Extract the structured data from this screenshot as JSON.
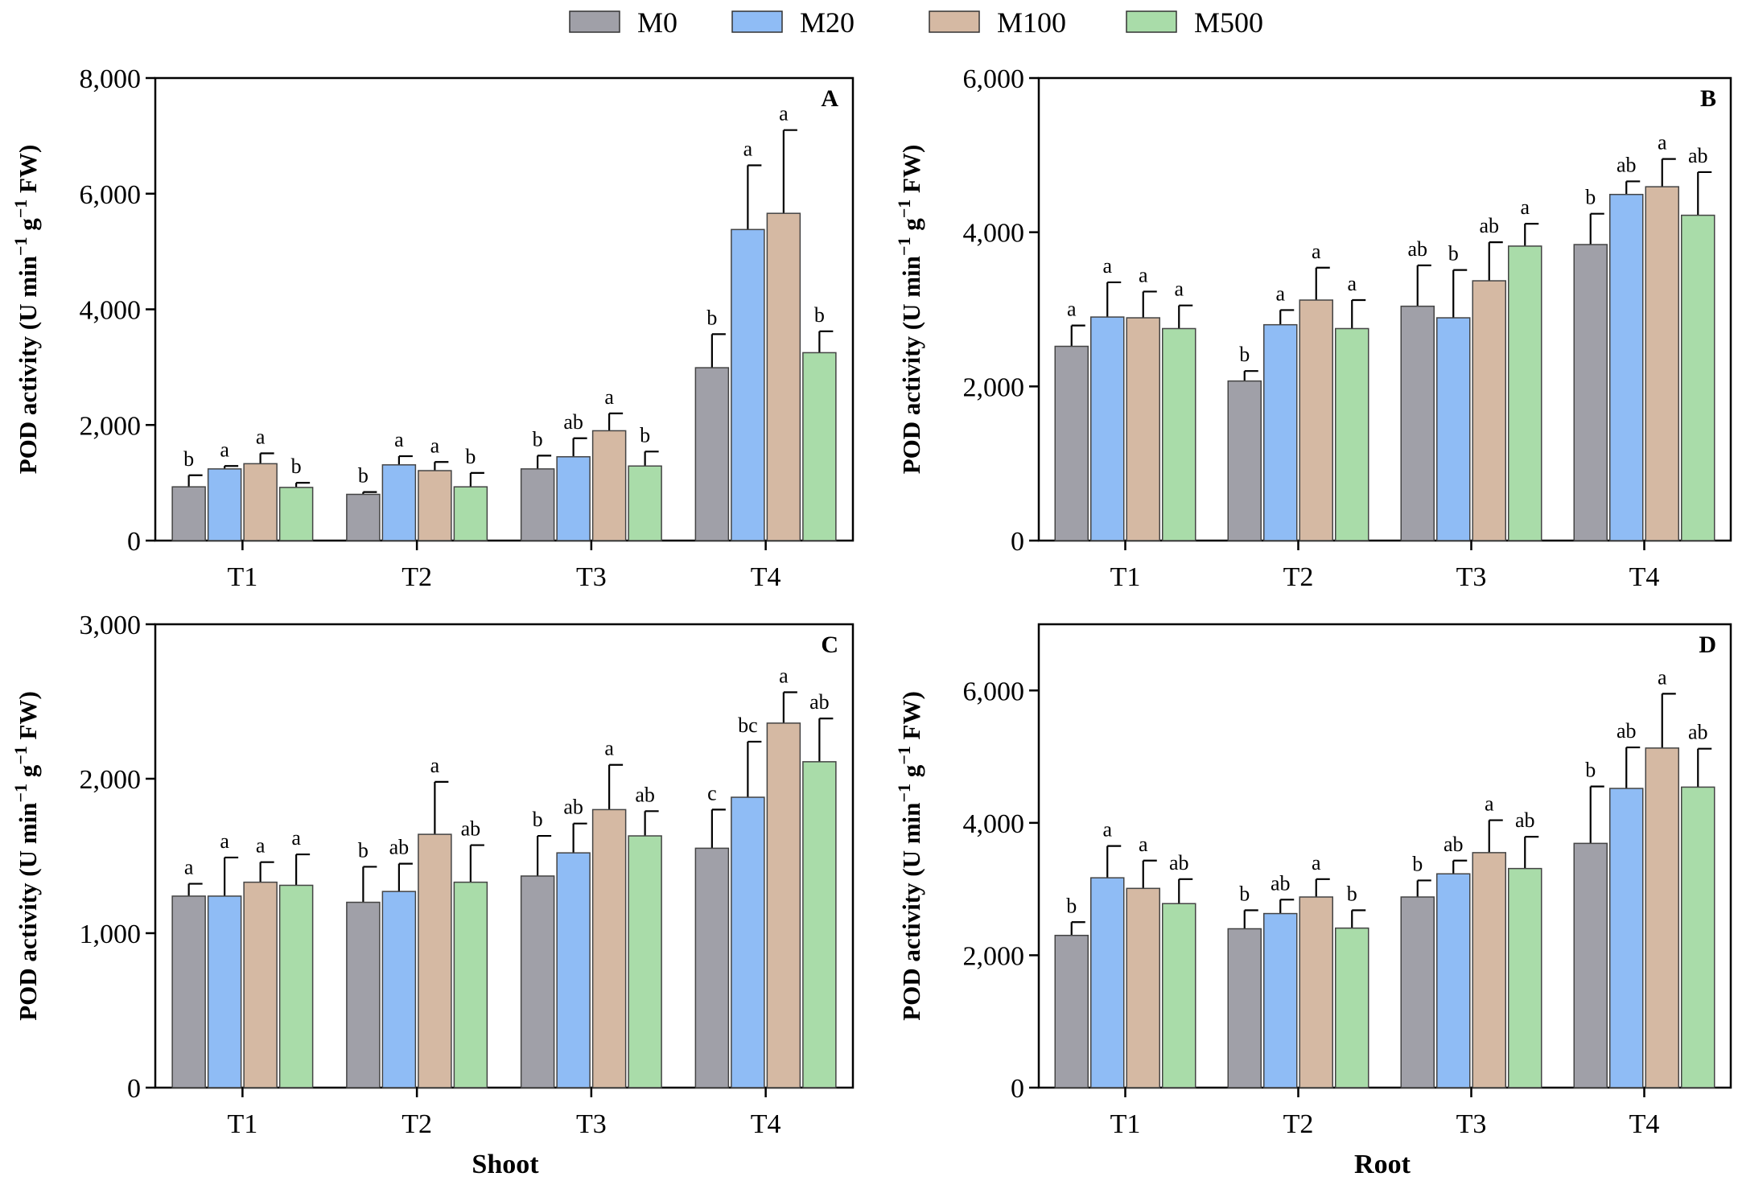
{
  "figure": {
    "legend": [
      {
        "name": "M0",
        "color": "#a0a0a8"
      },
      {
        "name": "M20",
        "color": "#8fbcf5"
      },
      {
        "name": "M100",
        "color": "#d5b9a3"
      },
      {
        "name": "M500",
        "color": "#a9dca9"
      }
    ],
    "x_section_labels": [
      "Shoot",
      "Root"
    ],
    "ylabel_main": "POD activity (U min",
    "ylabel_sup1": "−1",
    "ylabel_mid": " g",
    "ylabel_sup2": "−1",
    "ylabel_end": " FW)"
  },
  "chart_data": [
    {
      "type": "bar",
      "panel": "A",
      "title": "A",
      "section": "Shoot",
      "categories": [
        "T1",
        "T2",
        "T3",
        "T4"
      ],
      "ylim": [
        0,
        8000
      ],
      "yticks": [
        0,
        2000,
        4000,
        6000,
        8000
      ],
      "ytick_labels": [
        "0",
        "2,000",
        "4,000",
        "6,000",
        "8,000"
      ],
      "series": [
        {
          "name": "M0",
          "values": [
            930,
            800,
            1240,
            2990
          ],
          "errors": [
            200,
            40,
            230,
            580
          ],
          "letters": [
            "b",
            "b",
            "b",
            "b"
          ]
        },
        {
          "name": "M20",
          "values": [
            1240,
            1310,
            1450,
            5380
          ],
          "errors": [
            50,
            150,
            320,
            1110
          ],
          "letters": [
            "a",
            "a",
            "ab",
            "a"
          ]
        },
        {
          "name": "M100",
          "values": [
            1330,
            1210,
            1900,
            5660
          ],
          "errors": [
            180,
            150,
            300,
            1440
          ],
          "letters": [
            "a",
            "a",
            "a",
            "a"
          ]
        },
        {
          "name": "M500",
          "values": [
            920,
            930,
            1290,
            3250
          ],
          "errors": [
            80,
            240,
            250,
            370
          ],
          "letters": [
            "b",
            "b",
            "b",
            "b"
          ]
        }
      ]
    },
    {
      "type": "bar",
      "panel": "B",
      "title": "B",
      "section": "Root",
      "categories": [
        "T1",
        "T2",
        "T3",
        "T4"
      ],
      "ylim": [
        0,
        6000
      ],
      "yticks": [
        0,
        2000,
        4000,
        6000
      ],
      "ytick_labels": [
        "0",
        "2,000",
        "4,000",
        "6,000"
      ],
      "series": [
        {
          "name": "M0",
          "values": [
            2520,
            2070,
            3040,
            3840
          ],
          "errors": [
            270,
            130,
            530,
            400
          ],
          "letters": [
            "a",
            "b",
            "ab",
            "b"
          ]
        },
        {
          "name": "M20",
          "values": [
            2900,
            2800,
            2890,
            4490
          ],
          "errors": [
            450,
            190,
            620,
            170
          ],
          "letters": [
            "a",
            "a",
            "b",
            "ab"
          ]
        },
        {
          "name": "M100",
          "values": [
            2890,
            3120,
            3370,
            4590
          ],
          "errors": [
            340,
            420,
            500,
            360
          ],
          "letters": [
            "a",
            "a",
            "ab",
            "a"
          ]
        },
        {
          "name": "M500",
          "values": [
            2750,
            2750,
            3820,
            4220
          ],
          "errors": [
            300,
            370,
            290,
            560
          ],
          "letters": [
            "a",
            "a",
            "a",
            "ab"
          ]
        }
      ]
    },
    {
      "type": "bar",
      "panel": "C",
      "title": "C",
      "section": "Shoot",
      "categories": [
        "T1",
        "T2",
        "T3",
        "T4"
      ],
      "ylim": [
        0,
        3000
      ],
      "yticks": [
        0,
        1000,
        2000,
        3000
      ],
      "ytick_labels": [
        "0",
        "1,000",
        "2,000",
        "3,000"
      ],
      "series": [
        {
          "name": "M0",
          "values": [
            1240,
            1200,
            1370,
            1550
          ],
          "errors": [
            80,
            230,
            260,
            250
          ],
          "letters": [
            "a",
            "b",
            "b",
            "c"
          ]
        },
        {
          "name": "M20",
          "values": [
            1240,
            1270,
            1520,
            1880
          ],
          "errors": [
            250,
            180,
            190,
            360
          ],
          "letters": [
            "a",
            "ab",
            "ab",
            "bc"
          ]
        },
        {
          "name": "M100",
          "values": [
            1330,
            1640,
            1800,
            2360
          ],
          "errors": [
            130,
            340,
            290,
            200
          ],
          "letters": [
            "a",
            "a",
            "a",
            "a"
          ]
        },
        {
          "name": "M500",
          "values": [
            1310,
            1330,
            1630,
            2110
          ],
          "errors": [
            200,
            240,
            160,
            280
          ],
          "letters": [
            "a",
            "ab",
            "ab",
            "ab"
          ]
        }
      ]
    },
    {
      "type": "bar",
      "panel": "D",
      "title": "D",
      "section": "Root",
      "categories": [
        "T1",
        "T2",
        "T3",
        "T4"
      ],
      "ylim": [
        0,
        7000
      ],
      "yticks": [
        0,
        2000,
        4000,
        6000
      ],
      "ytick_labels": [
        "0",
        "2,000",
        "4,000",
        "6,000"
      ],
      "series": [
        {
          "name": "M0",
          "values": [
            2300,
            2400,
            2880,
            3690
          ],
          "errors": [
            200,
            280,
            250,
            860
          ],
          "letters": [
            "b",
            "b",
            "b",
            "b"
          ]
        },
        {
          "name": "M20",
          "values": [
            3170,
            2630,
            3230,
            4520
          ],
          "errors": [
            480,
            210,
            200,
            620
          ],
          "letters": [
            "a",
            "ab",
            "ab",
            "ab"
          ]
        },
        {
          "name": "M100",
          "values": [
            3010,
            2880,
            3550,
            5130
          ],
          "errors": [
            420,
            270,
            490,
            820
          ],
          "letters": [
            "a",
            "a",
            "a",
            "a"
          ]
        },
        {
          "name": "M500",
          "values": [
            2780,
            2410,
            3310,
            4540
          ],
          "errors": [
            370,
            270,
            480,
            580
          ],
          "letters": [
            "ab",
            "b",
            "ab",
            "ab"
          ]
        }
      ]
    }
  ]
}
